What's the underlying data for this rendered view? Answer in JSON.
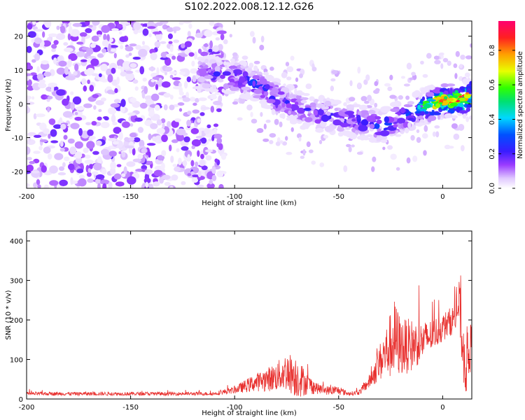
{
  "title": "S102.2022.008.12.12.G26",
  "chart_data": [
    {
      "type": "heatmap",
      "xlabel": "Height of straight line (km)",
      "ylabel": "Frequency (Hz)",
      "xlim": [
        -200,
        14
      ],
      "ylim": [
        -25,
        24.5
      ],
      "x_ticks": [
        -200,
        -150,
        -100,
        -50,
        0
      ],
      "y_ticks": [
        -20,
        -10,
        0,
        10,
        20
      ],
      "colorbar": {
        "label": "Normalized spectral amplitude",
        "range": [
          0,
          0.97
        ],
        "ticks": [
          "0.0",
          "0.2",
          "0.4",
          "0.6",
          "0.8"
        ],
        "colormap": "rainbow (white→purple→blue→cyan→green→yellow→red→magenta)"
      },
      "ridge_trace": {
        "x": [
          -115,
          -100,
          -90,
          -80,
          -70,
          -60,
          -50,
          -40,
          -30,
          -20,
          -10,
          0,
          10,
          14
        ],
        "frequency": [
          9,
          8,
          6,
          2,
          -1,
          -3,
          -4,
          -5,
          -7,
          -4,
          -1,
          1,
          1,
          3
        ],
        "peak_amplitude": [
          0.2,
          0.3,
          0.3,
          0.3,
          0.25,
          0.25,
          0.25,
          0.3,
          0.35,
          0.3,
          0.55,
          0.9,
          0.95,
          0.7
        ]
      }
    },
    {
      "type": "line",
      "xlabel": "Height of straight line (km)",
      "ylabel": "SNR (10 * v/v)",
      "xlim": [
        -200,
        14
      ],
      "ylim": [
        0,
        425
      ],
      "x_ticks": [
        -200,
        -150,
        -100,
        -50,
        0
      ],
      "y_ticks": [
        0,
        100,
        200,
        300,
        400
      ],
      "line_color": "#e8302e",
      "envelope": {
        "x": [
          -200,
          -150,
          -110,
          -100,
          -90,
          -80,
          -75,
          -70,
          -65,
          -60,
          -55,
          -50,
          -45,
          -40,
          -35,
          -30,
          -27,
          -23,
          -20,
          -15,
          -10,
          -5,
          0,
          5,
          8,
          10,
          12,
          14
        ],
        "base": [
          12,
          12,
          12,
          20,
          35,
          45,
          55,
          40,
          30,
          22,
          18,
          18,
          12,
          15,
          40,
          80,
          100,
          120,
          110,
          115,
          130,
          150,
          170,
          190,
          220,
          80,
          60,
          140
        ],
        "amp": [
          10,
          10,
          10,
          20,
          50,
          80,
          110,
          120,
          60,
          30,
          25,
          25,
          10,
          15,
          40,
          110,
          150,
          230,
          160,
          150,
          110,
          90,
          80,
          80,
          150,
          140,
          220,
          90
        ]
      }
    }
  ]
}
